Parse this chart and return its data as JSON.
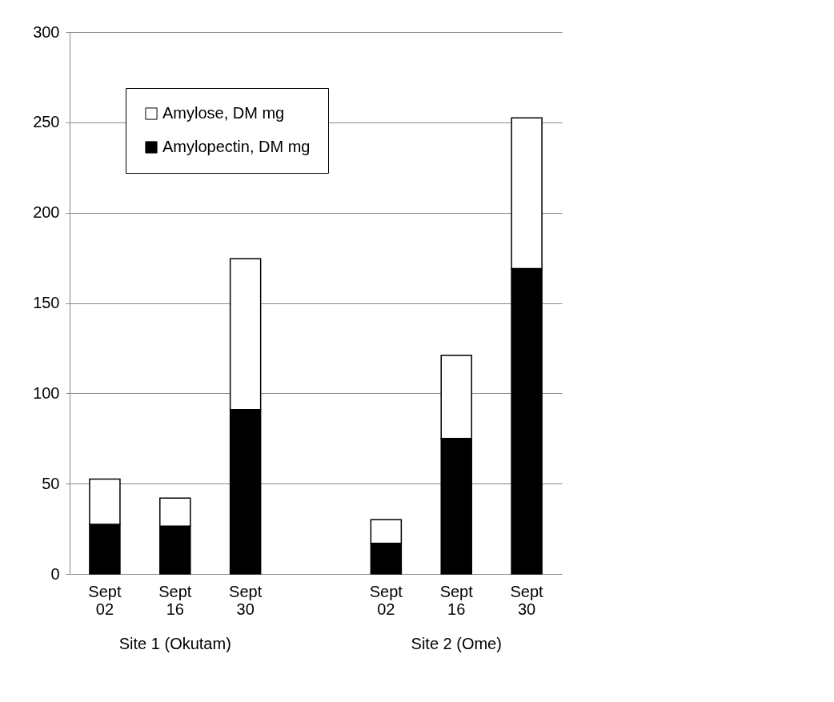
{
  "chart_data": {
    "type": "bar",
    "stacked": true,
    "categories": [
      "Sept 02",
      "Sept 16",
      "Sept 30",
      null,
      "Sept 02",
      "Sept 16",
      "Sept 30"
    ],
    "series": [
      {
        "name": "Amylopectin, DM mg",
        "color": "#000000",
        "values": [
          27.5,
          26.5,
          91,
          null,
          17,
          75,
          169
        ]
      },
      {
        "name": "Amylose, DM mg",
        "color": "#ffffff",
        "values": [
          25,
          15.5,
          83.5,
          null,
          13,
          46,
          83.5
        ]
      }
    ],
    "ylim": [
      0,
      300
    ],
    "yticks": [
      0,
      50,
      100,
      150,
      200,
      250,
      300
    ],
    "grid": "y",
    "legend": "top left",
    "annotations": [
      "Site 1 (Okutam)",
      "Site 2 (Ome)"
    ]
  }
}
